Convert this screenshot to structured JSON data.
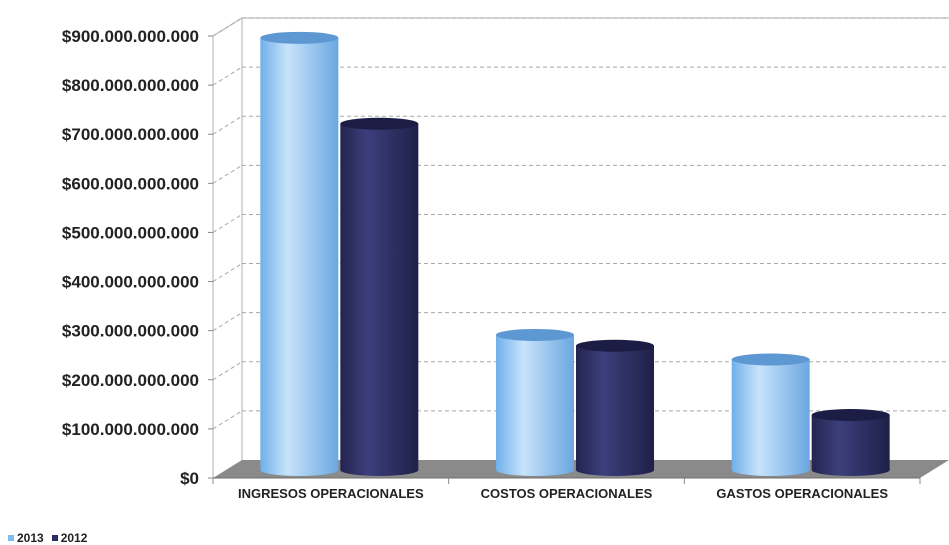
{
  "chart_data": {
    "type": "bar",
    "title": "",
    "xlabel": "",
    "ylabel": "",
    "categories": [
      "INGRESOS OPERACIONALES",
      "COSTOS OPERACIONALES",
      "GASTOS OPERACIONALES"
    ],
    "series": [
      {
        "name": "2013",
        "values": [
          880000000000,
          275000000000,
          225000000000
        ],
        "color": "#8fc4f2"
      },
      {
        "name": "2012",
        "values": [
          705000000000,
          253000000000,
          112000000000
        ],
        "color": "#2b2d63"
      }
    ],
    "ylim": [
      0,
      900000000000
    ],
    "yticks": [
      {
        "value": 0,
        "label": "$0"
      },
      {
        "value": 100000000000,
        "label": "$100.000.000.000"
      },
      {
        "value": 200000000000,
        "label": "$200.000.000.000"
      },
      {
        "value": 300000000000,
        "label": "$300.000.000.000"
      },
      {
        "value": 400000000000,
        "label": "$400.000.000.000"
      },
      {
        "value": 500000000000,
        "label": "$500.000.000.000"
      },
      {
        "value": 600000000000,
        "label": "$600.000.000.000"
      },
      {
        "value": 700000000000,
        "label": "$700.000.000.000"
      },
      {
        "value": 800000000000,
        "label": "$800.000.000.000"
      },
      {
        "value": 900000000000,
        "label": "$900.000.000.000"
      }
    ],
    "grid": true,
    "legend_position": "bottom-left",
    "style": "3d-cylinder"
  }
}
